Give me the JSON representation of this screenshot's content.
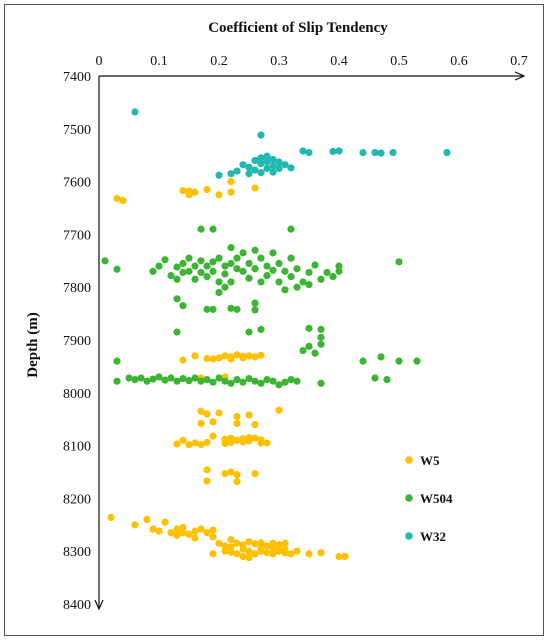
{
  "chart_data": {
    "type": "scatter",
    "title": "Coefficient of Slip Tendency",
    "xlabel": "Coefficient of Slip Tendency",
    "ylabel": "Depth (m)",
    "xlim": [
      0,
      0.7
    ],
    "ylim": [
      7400,
      8400
    ],
    "y_inverted": true,
    "x_axis_position": "top",
    "x_ticks": [
      "0",
      "0.1",
      "0.2",
      "0.3",
      "0.4",
      "0.5",
      "0.6",
      "0.7"
    ],
    "y_ticks": [
      "7400",
      "7500",
      "7600",
      "7700",
      "7800",
      "7900",
      "8000",
      "8100",
      "8200",
      "8300",
      "8400"
    ],
    "grid": false,
    "legend_position": "right",
    "series": [
      {
        "name": "W5",
        "color": "#FFC000",
        "points": [
          [
            0.14,
            7617
          ],
          [
            0.15,
            7618
          ],
          [
            0.16,
            7620
          ],
          [
            0.18,
            7615
          ],
          [
            0.2,
            7625
          ],
          [
            0.22,
            7620
          ],
          [
            0.26,
            7612
          ],
          [
            0.15,
            7625
          ],
          [
            0.03,
            7632
          ],
          [
            0.04,
            7636
          ],
          [
            0.22,
            7600
          ],
          [
            0.14,
            7938
          ],
          [
            0.16,
            7930
          ],
          [
            0.18,
            7935
          ],
          [
            0.2,
            7934
          ],
          [
            0.21,
            7930
          ],
          [
            0.22,
            7932
          ],
          [
            0.23,
            7928
          ],
          [
            0.24,
            7931
          ],
          [
            0.25,
            7930
          ],
          [
            0.26,
            7932
          ],
          [
            0.27,
            7929
          ],
          [
            0.19,
            7936
          ],
          [
            0.22,
            7936
          ],
          [
            0.24,
            7934
          ],
          [
            0.17,
            7972
          ],
          [
            0.21,
            7970
          ],
          [
            0.17,
            8035
          ],
          [
            0.18,
            8040
          ],
          [
            0.2,
            8038
          ],
          [
            0.23,
            8045
          ],
          [
            0.25,
            8042
          ],
          [
            0.3,
            8033
          ],
          [
            0.17,
            8058
          ],
          [
            0.19,
            8055
          ],
          [
            0.23,
            8058
          ],
          [
            0.26,
            8060
          ],
          [
            0.13,
            8097
          ],
          [
            0.14,
            8090
          ],
          [
            0.15,
            8098
          ],
          [
            0.16,
            8095
          ],
          [
            0.17,
            8098
          ],
          [
            0.18,
            8094
          ],
          [
            0.19,
            8082
          ],
          [
            0.21,
            8088
          ],
          [
            0.22,
            8086
          ],
          [
            0.23,
            8090
          ],
          [
            0.24,
            8087
          ],
          [
            0.25,
            8091
          ],
          [
            0.26,
            8086
          ],
          [
            0.27,
            8095
          ],
          [
            0.21,
            8096
          ],
          [
            0.22,
            8094
          ],
          [
            0.24,
            8093
          ],
          [
            0.25,
            8085
          ],
          [
            0.27,
            8089
          ],
          [
            0.28,
            8095
          ],
          [
            0.18,
            8146
          ],
          [
            0.21,
            8153
          ],
          [
            0.22,
            8150
          ],
          [
            0.23,
            8155
          ],
          [
            0.26,
            8153
          ],
          [
            0.18,
            8167
          ],
          [
            0.23,
            8168
          ],
          [
            0.02,
            8236
          ],
          [
            0.06,
            8250
          ],
          [
            0.08,
            8240
          ],
          [
            0.09,
            8258
          ],
          [
            0.1,
            8262
          ],
          [
            0.11,
            8245
          ],
          [
            0.12,
            8265
          ],
          [
            0.13,
            8270
          ],
          [
            0.13,
            8258
          ],
          [
            0.14,
            8255
          ],
          [
            0.14,
            8265
          ],
          [
            0.15,
            8268
          ],
          [
            0.16,
            8262
          ],
          [
            0.17,
            8258
          ],
          [
            0.18,
            8265
          ],
          [
            0.19,
            8273
          ],
          [
            0.19,
            8260
          ],
          [
            0.16,
            8275
          ],
          [
            0.2,
            8285
          ],
          [
            0.21,
            8290
          ],
          [
            0.22,
            8292
          ],
          [
            0.22,
            8278
          ],
          [
            0.23,
            8285
          ],
          [
            0.24,
            8288
          ],
          [
            0.25,
            8282
          ],
          [
            0.26,
            8286
          ],
          [
            0.27,
            8284
          ],
          [
            0.28,
            8290
          ],
          [
            0.29,
            8285
          ],
          [
            0.3,
            8288
          ],
          [
            0.31,
            8285
          ],
          [
            0.19,
            8305
          ],
          [
            0.21,
            8300
          ],
          [
            0.22,
            8302
          ],
          [
            0.23,
            8305
          ],
          [
            0.24,
            8310
          ],
          [
            0.25,
            8300
          ],
          [
            0.25,
            8312
          ],
          [
            0.26,
            8305
          ],
          [
            0.27,
            8300
          ],
          [
            0.28,
            8303
          ],
          [
            0.29,
            8305
          ],
          [
            0.3,
            8300
          ],
          [
            0.31,
            8303
          ],
          [
            0.32,
            8305
          ],
          [
            0.33,
            8300
          ],
          [
            0.35,
            8305
          ],
          [
            0.37,
            8303
          ],
          [
            0.4,
            8310
          ],
          [
            0.41,
            8310
          ],
          [
            0.24,
            8296
          ],
          [
            0.27,
            8295
          ],
          [
            0.29,
            8294
          ],
          [
            0.31,
            8296
          ]
        ]
      },
      {
        "name": "W504",
        "color": "#3CB434",
        "points": [
          [
            0.17,
            7690
          ],
          [
            0.19,
            7690
          ],
          [
            0.32,
            7690
          ],
          [
            0.01,
            7750
          ],
          [
            0.03,
            7766
          ],
          [
            0.09,
            7770
          ],
          [
            0.1,
            7760
          ],
          [
            0.11,
            7748
          ],
          [
            0.12,
            7778
          ],
          [
            0.13,
            7762
          ],
          [
            0.13,
            7785
          ],
          [
            0.14,
            7772
          ],
          [
            0.14,
            7755
          ],
          [
            0.15,
            7745
          ],
          [
            0.15,
            7770
          ],
          [
            0.16,
            7785
          ],
          [
            0.16,
            7760
          ],
          [
            0.17,
            7750
          ],
          [
            0.17,
            7772
          ],
          [
            0.18,
            7760
          ],
          [
            0.18,
            7780
          ],
          [
            0.19,
            7752
          ],
          [
            0.19,
            7770
          ],
          [
            0.2,
            7745
          ],
          [
            0.2,
            7790
          ],
          [
            0.2,
            7810
          ],
          [
            0.21,
            7760
          ],
          [
            0.21,
            7775
          ],
          [
            0.22,
            7725
          ],
          [
            0.22,
            7755
          ],
          [
            0.22,
            7790
          ],
          [
            0.23,
            7745
          ],
          [
            0.23,
            7765
          ],
          [
            0.24,
            7735
          ],
          [
            0.24,
            7770
          ],
          [
            0.25,
            7755
          ],
          [
            0.25,
            7783
          ],
          [
            0.26,
            7730
          ],
          [
            0.26,
            7765
          ],
          [
            0.27,
            7745
          ],
          [
            0.27,
            7790
          ],
          [
            0.28,
            7760
          ],
          [
            0.28,
            7778
          ],
          [
            0.29,
            7735
          ],
          [
            0.29,
            7768
          ],
          [
            0.3,
            7790
          ],
          [
            0.3,
            7755
          ],
          [
            0.31,
            7770
          ],
          [
            0.31,
            7805
          ],
          [
            0.32,
            7745
          ],
          [
            0.32,
            7780
          ],
          [
            0.33,
            7765
          ],
          [
            0.34,
            7790
          ],
          [
            0.35,
            7772
          ],
          [
            0.36,
            7758
          ],
          [
            0.37,
            7785
          ],
          [
            0.38,
            7772
          ],
          [
            0.39,
            7780
          ],
          [
            0.4,
            7760
          ],
          [
            0.4,
            7770
          ],
          [
            0.5,
            7752
          ],
          [
            0.33,
            7800
          ],
          [
            0.35,
            7795
          ],
          [
            0.21,
            7800
          ],
          [
            0.13,
            7822
          ],
          [
            0.14,
            7835
          ],
          [
            0.18,
            7842
          ],
          [
            0.19,
            7842
          ],
          [
            0.22,
            7840
          ],
          [
            0.23,
            7842
          ],
          [
            0.26,
            7830
          ],
          [
            0.26,
            7843
          ],
          [
            0.13,
            7885
          ],
          [
            0.25,
            7885
          ],
          [
            0.27,
            7880
          ],
          [
            0.35,
            7878
          ],
          [
            0.37,
            7880
          ],
          [
            0.37,
            7895
          ],
          [
            0.35,
            7912
          ],
          [
            0.37,
            7908
          ],
          [
            0.34,
            7920
          ],
          [
            0.36,
            7925
          ],
          [
            0.03,
            7940
          ],
          [
            0.44,
            7940
          ],
          [
            0.47,
            7932
          ],
          [
            0.5,
            7940
          ],
          [
            0.53,
            7940
          ],
          [
            0.03,
            7978
          ],
          [
            0.05,
            7972
          ],
          [
            0.06,
            7975
          ],
          [
            0.07,
            7972
          ],
          [
            0.08,
            7978
          ],
          [
            0.09,
            7974
          ],
          [
            0.1,
            7970
          ],
          [
            0.11,
            7976
          ],
          [
            0.12,
            7972
          ],
          [
            0.13,
            7978
          ],
          [
            0.14,
            7973
          ],
          [
            0.15,
            7977
          ],
          [
            0.16,
            7972
          ],
          [
            0.17,
            7978
          ],
          [
            0.18,
            7975
          ],
          [
            0.19,
            7980
          ],
          [
            0.2,
            7972
          ],
          [
            0.21,
            7978
          ],
          [
            0.22,
            7982
          ],
          [
            0.23,
            7975
          ],
          [
            0.24,
            7980
          ],
          [
            0.25,
            7973
          ],
          [
            0.26,
            7978
          ],
          [
            0.27,
            7982
          ],
          [
            0.28,
            7975
          ],
          [
            0.29,
            7978
          ],
          [
            0.3,
            7985
          ],
          [
            0.31,
            7980
          ],
          [
            0.32,
            7975
          ],
          [
            0.33,
            7978
          ],
          [
            0.37,
            7982
          ],
          [
            0.46,
            7972
          ],
          [
            0.48,
            7975
          ]
        ]
      },
      {
        "name": "W32",
        "color": "#20B8B0",
        "points": [
          [
            0.06,
            7468
          ],
          [
            0.27,
            7512
          ],
          [
            0.24,
            7568
          ],
          [
            0.25,
            7573
          ],
          [
            0.26,
            7560
          ],
          [
            0.26,
            7578
          ],
          [
            0.27,
            7555
          ],
          [
            0.27,
            7566
          ],
          [
            0.28,
            7552
          ],
          [
            0.28,
            7562
          ],
          [
            0.28,
            7575
          ],
          [
            0.29,
            7558
          ],
          [
            0.29,
            7570
          ],
          [
            0.3,
            7563
          ],
          [
            0.3,
            7575
          ],
          [
            0.31,
            7568
          ],
          [
            0.32,
            7574
          ],
          [
            0.25,
            7585
          ],
          [
            0.27,
            7583
          ],
          [
            0.29,
            7582
          ],
          [
            0.23,
            7580
          ],
          [
            0.22,
            7585
          ],
          [
            0.2,
            7588
          ],
          [
            0.35,
            7545
          ],
          [
            0.34,
            7542
          ],
          [
            0.39,
            7543
          ],
          [
            0.4,
            7542
          ],
          [
            0.44,
            7545
          ],
          [
            0.46,
            7545
          ],
          [
            0.47,
            7546
          ],
          [
            0.49,
            7545
          ],
          [
            0.58,
            7545
          ]
        ]
      }
    ]
  }
}
